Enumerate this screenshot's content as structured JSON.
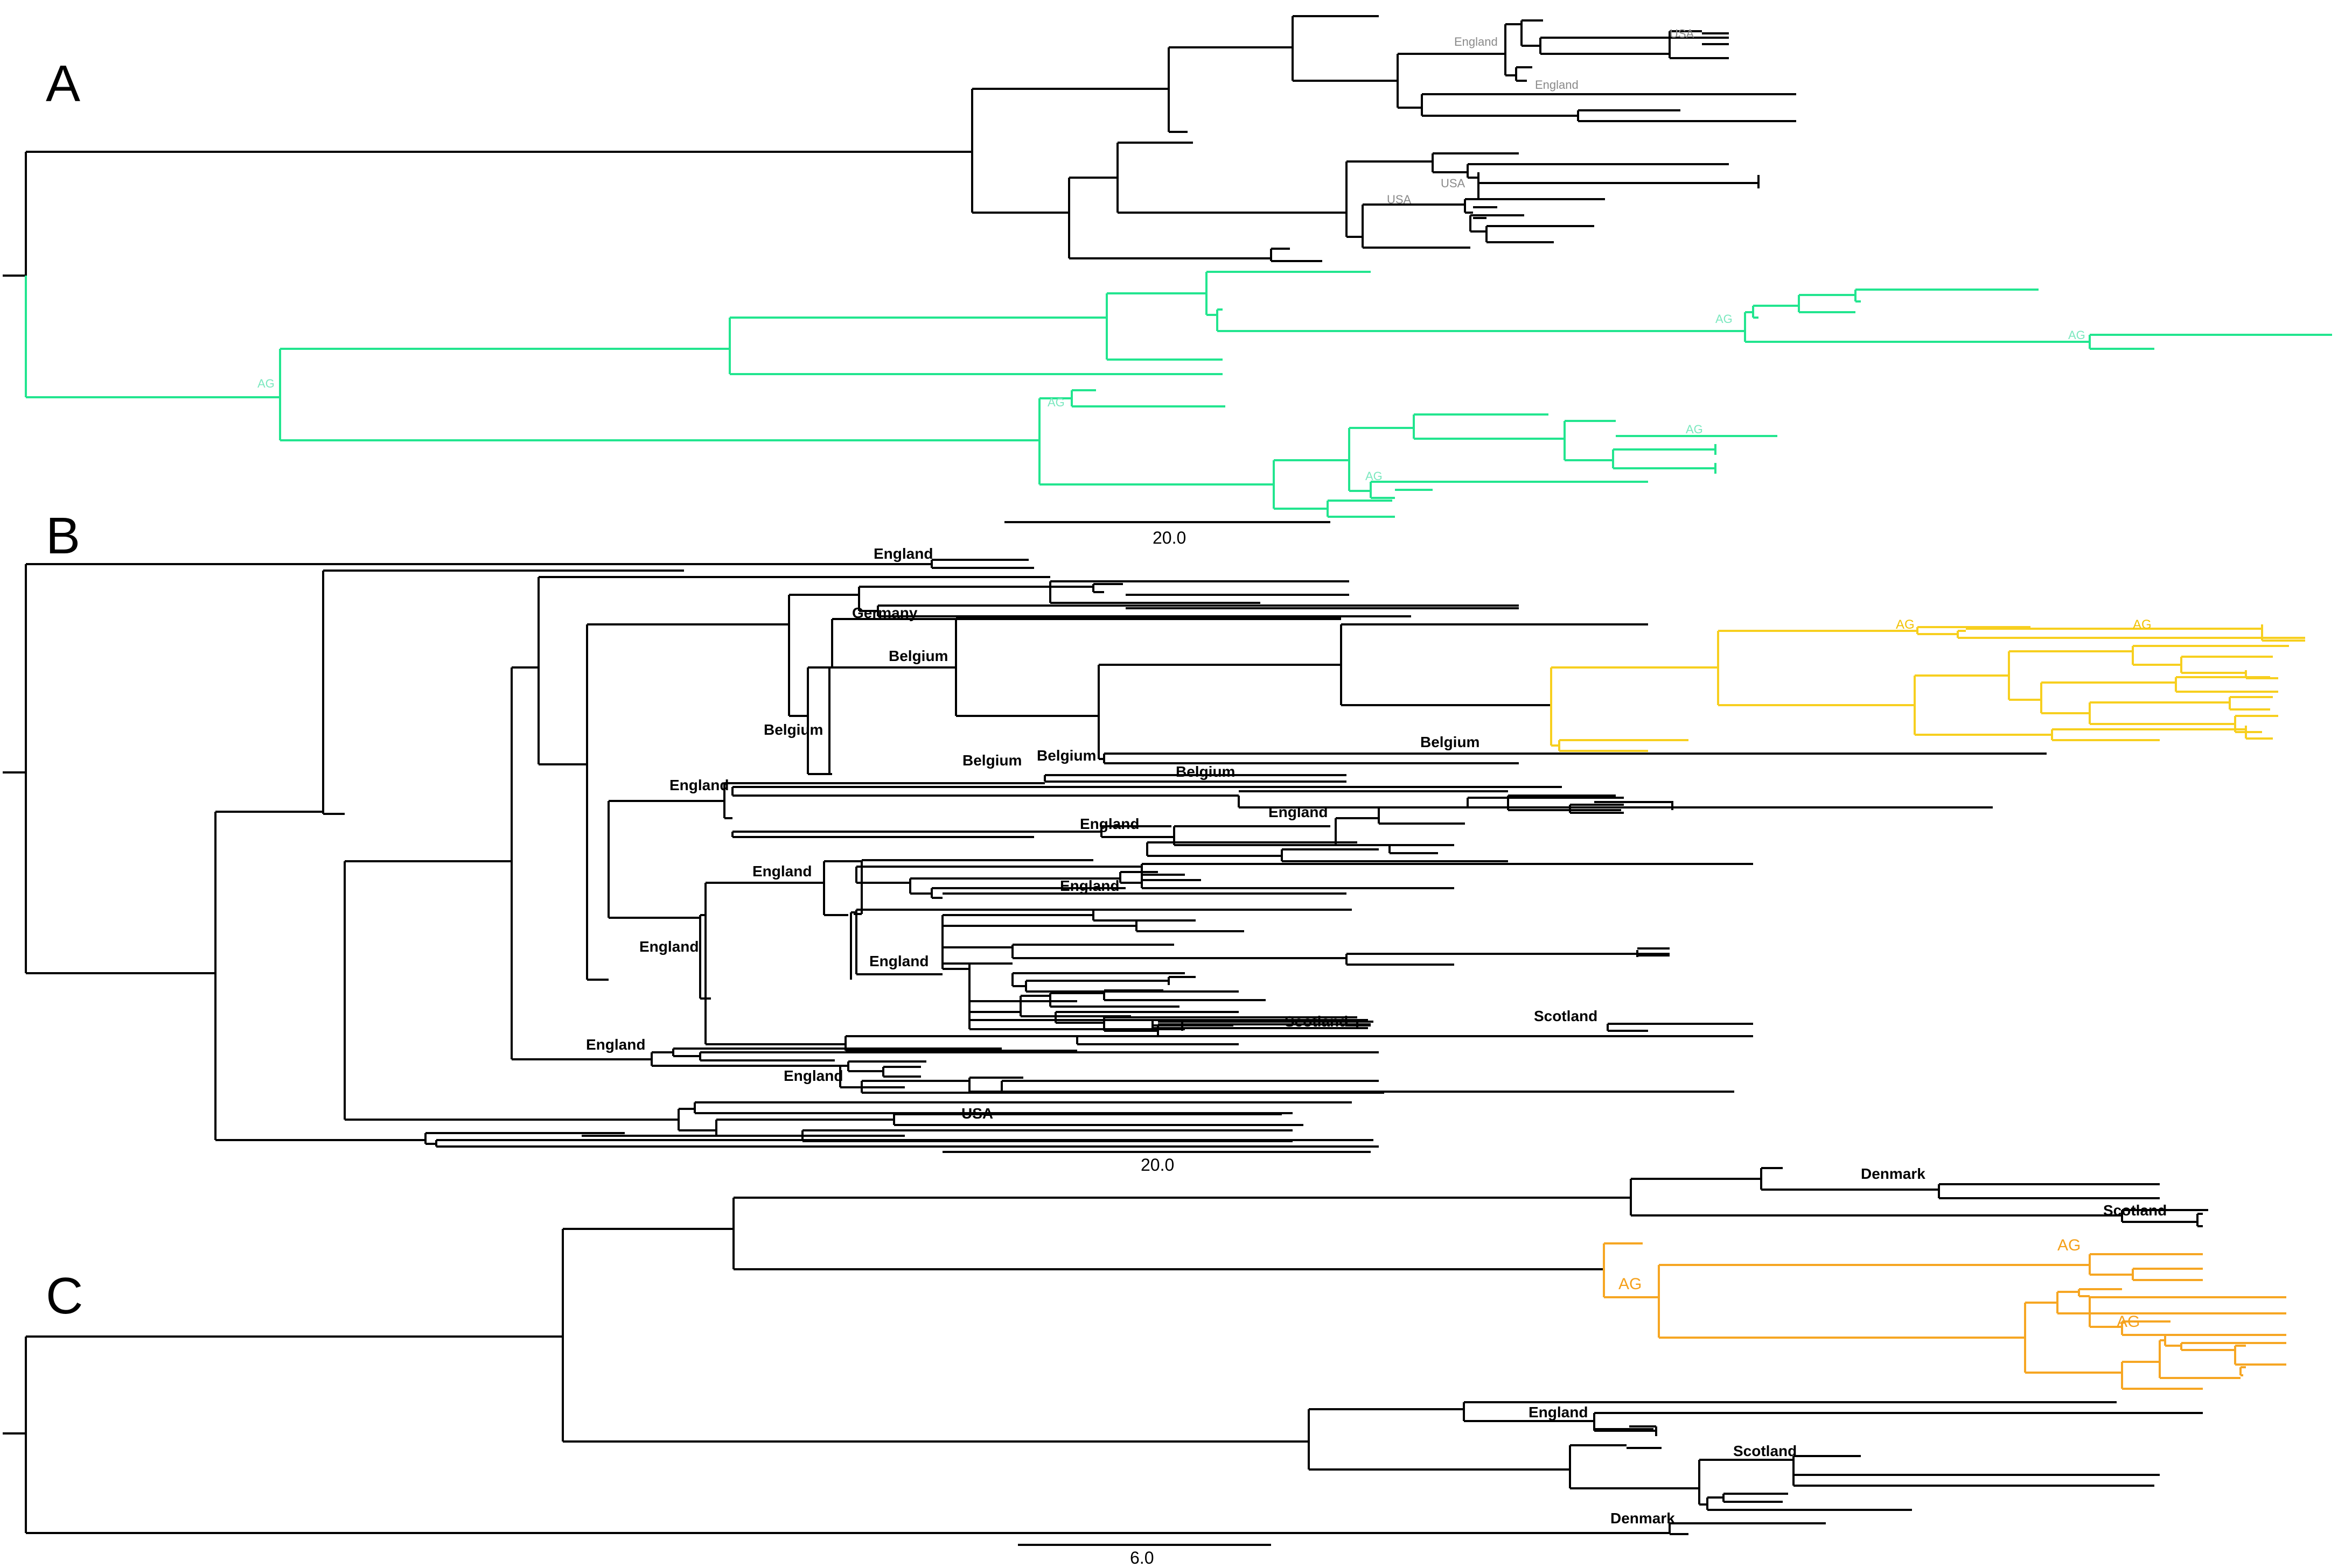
{
  "figure": {
    "panels": [
      {
        "letter": "A",
        "scale_label": "20.0",
        "labels": [
          {
            "text": "England",
            "style": "grey"
          },
          {
            "text": "USA",
            "style": "grey"
          },
          {
            "text": "England",
            "style": "grey"
          },
          {
            "text": "USA",
            "style": "grey"
          },
          {
            "text": "USA",
            "style": "grey"
          },
          {
            "text": "AG",
            "style": "green"
          },
          {
            "text": "AG",
            "style": "green"
          },
          {
            "text": "AG",
            "style": "green"
          },
          {
            "text": "AG",
            "style": "green"
          },
          {
            "text": "AG",
            "style": "green"
          },
          {
            "text": "AG",
            "style": "green"
          }
        ]
      },
      {
        "letter": "B",
        "scale_label": "20.0",
        "labels": [
          {
            "text": "England",
            "style": "black"
          },
          {
            "text": "Germany",
            "style": "black"
          },
          {
            "text": "Belgium",
            "style": "black"
          },
          {
            "text": "Belgium",
            "style": "black"
          },
          {
            "text": "Belgium",
            "style": "black"
          },
          {
            "text": "Belgium",
            "style": "black"
          },
          {
            "text": "Belgium",
            "style": "black"
          },
          {
            "text": "Belgium",
            "style": "black"
          },
          {
            "text": "England",
            "style": "black"
          },
          {
            "text": "England",
            "style": "black"
          },
          {
            "text": "England",
            "style": "black"
          },
          {
            "text": "England",
            "style": "black"
          },
          {
            "text": "England",
            "style": "black"
          },
          {
            "text": "England",
            "style": "black"
          },
          {
            "text": "England",
            "style": "black"
          },
          {
            "text": "England",
            "style": "black"
          },
          {
            "text": "England",
            "style": "black"
          },
          {
            "text": "Scotland",
            "style": "black"
          },
          {
            "text": "Scotland",
            "style": "black"
          },
          {
            "text": "USA",
            "style": "black"
          },
          {
            "text": "AG",
            "style": "yellow"
          },
          {
            "text": "AG",
            "style": "yellow"
          }
        ]
      },
      {
        "letter": "C",
        "scale_label": "6.0",
        "labels": [
          {
            "text": "Denmark",
            "style": "black"
          },
          {
            "text": "Scotland",
            "style": "black"
          },
          {
            "text": "AG",
            "style": "orange"
          },
          {
            "text": "AG",
            "style": "orange"
          },
          {
            "text": "AG",
            "style": "orange"
          },
          {
            "text": "England",
            "style": "black"
          },
          {
            "text": "Scotland",
            "style": "black"
          },
          {
            "text": "Denmark",
            "style": "black"
          }
        ]
      }
    ],
    "colors": {
      "default_branch": "#000000",
      "panel_a_clade": "#22e58f",
      "panel_b_clade": "#f7cf1f",
      "panel_c_clade": "#f6a623",
      "grey_label": "#8a8a8a"
    }
  }
}
